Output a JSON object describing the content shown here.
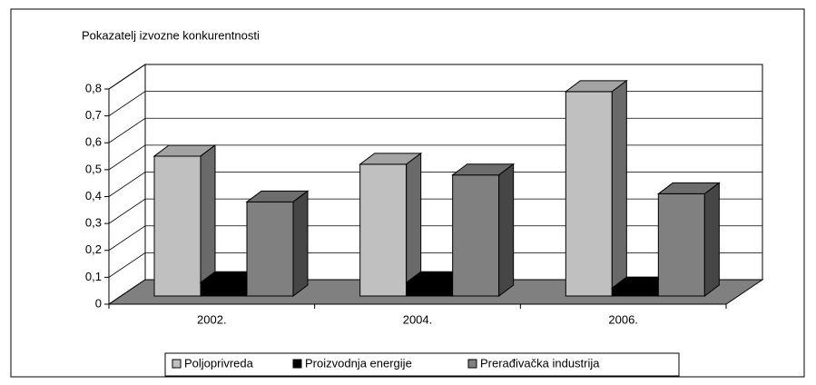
{
  "chart_data": {
    "type": "bar3d",
    "title": "Pokazatelj izvozne konkurentnosti",
    "categories": [
      "2002.",
      "2004.",
      "2006."
    ],
    "series": [
      {
        "name": "Poljoprivreda",
        "color": "#c0c0c0",
        "values": [
          0.52,
          0.49,
          0.76
        ]
      },
      {
        "name": "Proizvodnja energije",
        "color": "#000000",
        "values": [
          0.05,
          0.05,
          0.03
        ]
      },
      {
        "name": "Prerađivačka industrija",
        "color": "#808080",
        "values": [
          0.35,
          0.45,
          0.38
        ]
      }
    ],
    "ylim": [
      0,
      0.8
    ],
    "yticks": [
      0,
      {
        "value": 0.1,
        "label": "0,1"
      },
      {
        "value": 0.2,
        "label": "0,2"
      },
      {
        "value": 0.3,
        "label": "0,3"
      },
      {
        "value": 0.4,
        "label": "0,4"
      },
      {
        "value": 0.5,
        "label": "0,5"
      },
      {
        "value": 0.6,
        "label": "0,6"
      },
      {
        "value": 0.7,
        "label": "0,7"
      },
      {
        "value": 0.8,
        "label": "0,8"
      }
    ],
    "grid": true,
    "legend": "bottom"
  }
}
